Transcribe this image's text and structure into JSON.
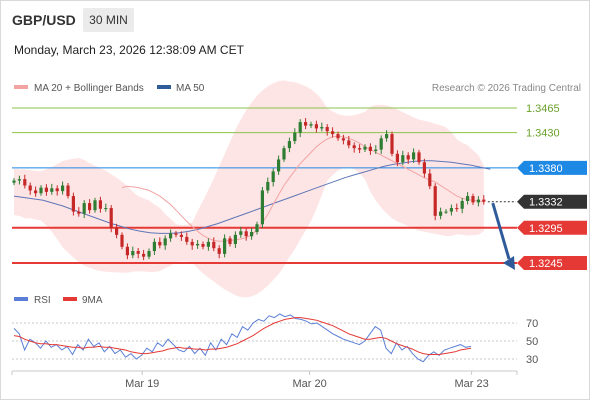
{
  "header": {
    "symbol": "GBP/USD",
    "timeframe": "30 MIN",
    "timestamp": "Monday, March 23, 2026 12:38:09 AM CET"
  },
  "legend": {
    "bollinger_label": "MA 20 + Bollinger Bands",
    "ma50_label": "MA 50",
    "credit": "Research © 2026 Trading Central"
  },
  "rsi_legend": {
    "rsi_label": "RSI",
    "ma9_label": "9MA"
  },
  "colors": {
    "candle_up": "#2e7d32",
    "candle_down": "#c62828",
    "bollinger_fill": "#fde0e0",
    "ma20": "#f4a3a3",
    "ma50": "#5f76b8",
    "resistance": "#8bc34a",
    "pivot": "#1e88e5",
    "support": "#e53935",
    "current": "#333333",
    "arrow": "#2f5b9a",
    "rsi": "#5b7fd6",
    "rsi_ma": "#e53935"
  },
  "chart_data": [
    {
      "type": "candlestick",
      "title": "GBP/USD",
      "timeframe": "30 MIN",
      "ylim": [
        1.3215,
        1.3485
      ],
      "x_ticks": [
        {
          "label": "Mar 19",
          "index": 23
        },
        {
          "label": "Mar 20",
          "index": 54
        },
        {
          "label": "Mar 23",
          "index": 84
        }
      ],
      "levels": [
        {
          "value": 1.3465,
          "label": "1.3465",
          "role": "resistance"
        },
        {
          "value": 1.343,
          "label": "1.3430",
          "role": "resistance"
        },
        {
          "value": 1.338,
          "label": "1.3380",
          "role": "pivot"
        },
        {
          "value": 1.3332,
          "label": "1.3332",
          "role": "current"
        },
        {
          "value": 1.3295,
          "label": "1.3295",
          "role": "support"
        },
        {
          "value": 1.3245,
          "label": "1.3245",
          "role": "support"
        }
      ],
      "closes": [
        1.3362,
        1.3364,
        1.3355,
        1.3348,
        1.3344,
        1.3352,
        1.3346,
        1.3351,
        1.3347,
        1.3355,
        1.334,
        1.3318,
        1.3315,
        1.333,
        1.332,
        1.3334,
        1.3322,
        1.3323,
        1.3295,
        1.3285,
        1.3268,
        1.3256,
        1.3262,
        1.3258,
        1.3254,
        1.3262,
        1.3275,
        1.327,
        1.328,
        1.3287,
        1.3285,
        1.3282,
        1.3275,
        1.327,
        1.3272,
        1.3268,
        1.3275,
        1.3266,
        1.3258,
        1.328,
        1.3272,
        1.3285,
        1.329,
        1.3283,
        1.3289,
        1.33,
        1.3348,
        1.336,
        1.3375,
        1.3392,
        1.3408,
        1.3418,
        1.343,
        1.3445,
        1.344,
        1.3442,
        1.3436,
        1.3438,
        1.3432,
        1.3428,
        1.3422,
        1.3419,
        1.3412,
        1.3408,
        1.3406,
        1.341,
        1.3404,
        1.3406,
        1.3422,
        1.3428,
        1.34,
        1.3388,
        1.3398,
        1.3392,
        1.3402,
        1.3388,
        1.3372,
        1.3354,
        1.3312,
        1.3318,
        1.3318,
        1.3323,
        1.3322,
        1.3333,
        1.334,
        1.3331,
        1.3335,
        1.3332
      ],
      "ma20": [
        1.3352,
        1.3354,
        1.3353,
        1.3352,
        1.335,
        1.3348,
        1.3344,
        1.334,
        1.3334,
        1.3328,
        1.332,
        1.3312,
        1.3304,
        1.3297,
        1.329,
        1.3284,
        1.328,
        1.3277,
        1.3276,
        1.3276,
        1.3277,
        1.3278,
        1.3279,
        1.3281,
        1.3285,
        1.3292,
        1.3302,
        1.3314,
        1.3328,
        1.3342,
        1.3355,
        1.3366,
        1.3376,
        1.3386,
        1.3394,
        1.3402,
        1.341,
        1.3416,
        1.3421,
        1.3424,
        1.3425,
        1.3424,
        1.3422,
        1.3419,
        1.3415,
        1.341,
        1.3406,
        1.3402,
        1.3398,
        1.3394,
        1.339,
        1.3386,
        1.3382,
        1.3378,
        1.3374,
        1.337,
        1.3366,
        1.3363,
        1.336,
        1.3355,
        1.335,
        1.3345,
        1.334,
        1.3337,
        1.3335,
        1.3334,
        1.3333,
        1.3332
      ],
      "ma20_start_index": 20,
      "ma50": [
        1.334,
        1.3338,
        1.3336,
        1.3334,
        1.333,
        1.3326,
        1.3321,
        1.3316,
        1.3311,
        1.3306,
        1.3301,
        1.3297,
        1.3293,
        1.329,
        1.3288,
        1.3287,
        1.3287,
        1.3288,
        1.329,
        1.3293,
        1.3297,
        1.3301,
        1.3306,
        1.3311,
        1.3316,
        1.3321,
        1.3326,
        1.3331,
        1.3336,
        1.3341,
        1.3346,
        1.3351,
        1.3356,
        1.3361,
        1.3366,
        1.337,
        1.3374,
        1.3378,
        1.3382,
        1.3385,
        1.3387,
        1.3389,
        1.339,
        1.339,
        1.3389,
        1.3388,
        1.3386,
        1.3384,
        1.3381,
        1.3378
      ],
      "ma50_step": 1.8,
      "projection": {
        "from": 1.333,
        "to": 1.3245
      }
    },
    {
      "type": "line",
      "title": "RSI",
      "ylim": [
        20,
        85
      ],
      "y_ticks": [
        70,
        50,
        30
      ],
      "series": [
        {
          "name": "RSI",
          "values": [
            64,
            58,
            40,
            52,
            48,
            42,
            50,
            43,
            46,
            40,
            44,
            35,
            46,
            40,
            52,
            44,
            48,
            38,
            44,
            36,
            40,
            32,
            36,
            30,
            34,
            42,
            38,
            48,
            44,
            52,
            46,
            40,
            38,
            44,
            36,
            42,
            34,
            48,
            40,
            52,
            46,
            58,
            54,
            66,
            62,
            70,
            74,
            72,
            78,
            76,
            80,
            77,
            79,
            75,
            74,
            72,
            69,
            70,
            66,
            62,
            58,
            55,
            52,
            50,
            48,
            46,
            50,
            58,
            66,
            62,
            42,
            36,
            48,
            40,
            44,
            36,
            30,
            27,
            34,
            38,
            34,
            40,
            42,
            44,
            46,
            43,
            44
          ]
        },
        {
          "name": "9MA",
          "values": [
            56,
            55,
            52,
            50,
            48,
            47,
            47,
            46,
            46,
            45,
            44,
            43,
            43,
            42,
            43,
            43,
            44,
            43,
            43,
            42,
            41,
            40,
            38,
            37,
            36,
            36,
            37,
            38,
            39,
            41,
            42,
            43,
            42,
            42,
            41,
            41,
            40,
            41,
            41,
            42,
            43,
            45,
            47,
            50,
            53,
            56,
            60,
            64,
            67,
            70,
            72,
            74,
            75,
            76,
            76,
            75,
            74,
            73,
            71,
            69,
            67,
            64,
            61,
            58,
            56,
            54,
            52,
            52,
            53,
            54,
            53,
            50,
            47,
            45,
            43,
            41,
            38,
            36,
            35,
            35,
            35,
            36,
            37,
            38,
            40,
            41,
            42
          ]
        }
      ]
    }
  ]
}
